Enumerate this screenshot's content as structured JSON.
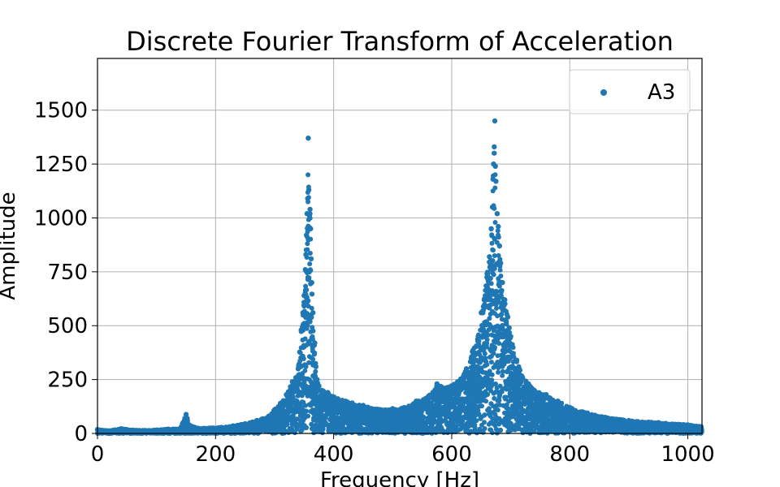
{
  "chart_data": {
    "type": "scatter",
    "title": "Discrete Fourier Transform of Acceleration",
    "xlabel": "Frequency [Hz]",
    "ylabel": "Amplitude",
    "xlim": [
      0,
      1024
    ],
    "ylim": [
      0,
      1740
    ],
    "xticks": [
      0,
      200,
      400,
      600,
      800,
      1000
    ],
    "yticks": [
      0,
      250,
      500,
      750,
      1000,
      1250,
      1500
    ],
    "grid": true,
    "legend_position": "top-right",
    "series": [
      {
        "name": "A3",
        "color": "#1f77b4",
        "peaks_hz": [
          357,
          673
        ],
        "minor_peak_hz": 152,
        "points": [
          [
            0,
            18
          ],
          [
            20,
            12
          ],
          [
            40,
            22
          ],
          [
            60,
            15
          ],
          [
            80,
            14
          ],
          [
            100,
            16
          ],
          [
            120,
            20
          ],
          [
            140,
            22
          ],
          [
            150,
            88
          ],
          [
            152,
            70
          ],
          [
            155,
            40
          ],
          [
            170,
            24
          ],
          [
            190,
            25
          ],
          [
            210,
            28
          ],
          [
            230,
            35
          ],
          [
            250,
            45
          ],
          [
            270,
            60
          ],
          [
            290,
            80
          ],
          [
            300,
            110
          ],
          [
            310,
            140
          ],
          [
            320,
            180
          ],
          [
            330,
            240
          ],
          [
            340,
            300
          ],
          [
            345,
            480
          ],
          [
            348,
            560
          ],
          [
            350,
            640
          ],
          [
            352,
            760
          ],
          [
            353,
            830
          ],
          [
            354,
            920
          ],
          [
            355,
            1020
          ],
          [
            356,
            1090
          ],
          [
            357,
            1370
          ],
          [
            358,
            1130
          ],
          [
            359,
            1010
          ],
          [
            360,
            1040
          ],
          [
            361,
            950
          ],
          [
            362,
            810
          ],
          [
            363,
            700
          ],
          [
            365,
            560
          ],
          [
            368,
            420
          ],
          [
            370,
            310
          ],
          [
            372,
            250
          ],
          [
            375,
            220
          ],
          [
            380,
            200
          ],
          [
            390,
            190
          ],
          [
            400,
            170
          ],
          [
            420,
            150
          ],
          [
            450,
            130
          ],
          [
            480,
            110
          ],
          [
            500,
            115
          ],
          [
            520,
            120
          ],
          [
            540,
            150
          ],
          [
            560,
            170
          ],
          [
            575,
            230
          ],
          [
            590,
            210
          ],
          [
            610,
            240
          ],
          [
            625,
            300
          ],
          [
            635,
            380
          ],
          [
            645,
            450
          ],
          [
            650,
            560
          ],
          [
            655,
            620
          ],
          [
            660,
            740
          ],
          [
            664,
            820
          ],
          [
            667,
            950
          ],
          [
            669,
            1050
          ],
          [
            670,
            1180
          ],
          [
            671,
            1250
          ],
          [
            672,
            1330
          ],
          [
            673,
            1450
          ],
          [
            674,
            1240
          ],
          [
            675,
            1170
          ],
          [
            677,
            1020
          ],
          [
            679,
            960
          ],
          [
            681,
            870
          ],
          [
            683,
            790
          ],
          [
            686,
            700
          ],
          [
            690,
            620
          ],
          [
            695,
            540
          ],
          [
            700,
            450
          ],
          [
            710,
            340
          ],
          [
            720,
            260
          ],
          [
            730,
            230
          ],
          [
            740,
            200
          ],
          [
            760,
            180
          ],
          [
            780,
            150
          ],
          [
            800,
            120
          ],
          [
            830,
            95
          ],
          [
            860,
            75
          ],
          [
            900,
            60
          ],
          [
            950,
            50
          ],
          [
            1000,
            40
          ],
          [
            1020,
            32
          ]
        ]
      }
    ]
  }
}
